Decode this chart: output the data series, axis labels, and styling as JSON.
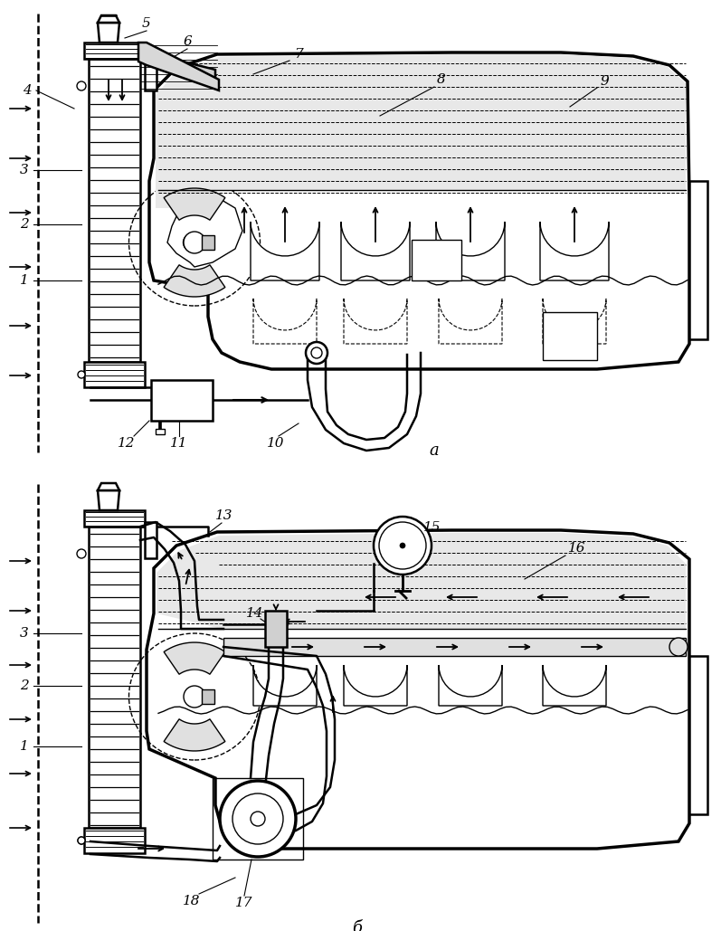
{
  "bg_color": "#ffffff",
  "lc": "#000000",
  "lw": 1.8,
  "lw_thick": 2.5,
  "lw_thin": 1.0
}
